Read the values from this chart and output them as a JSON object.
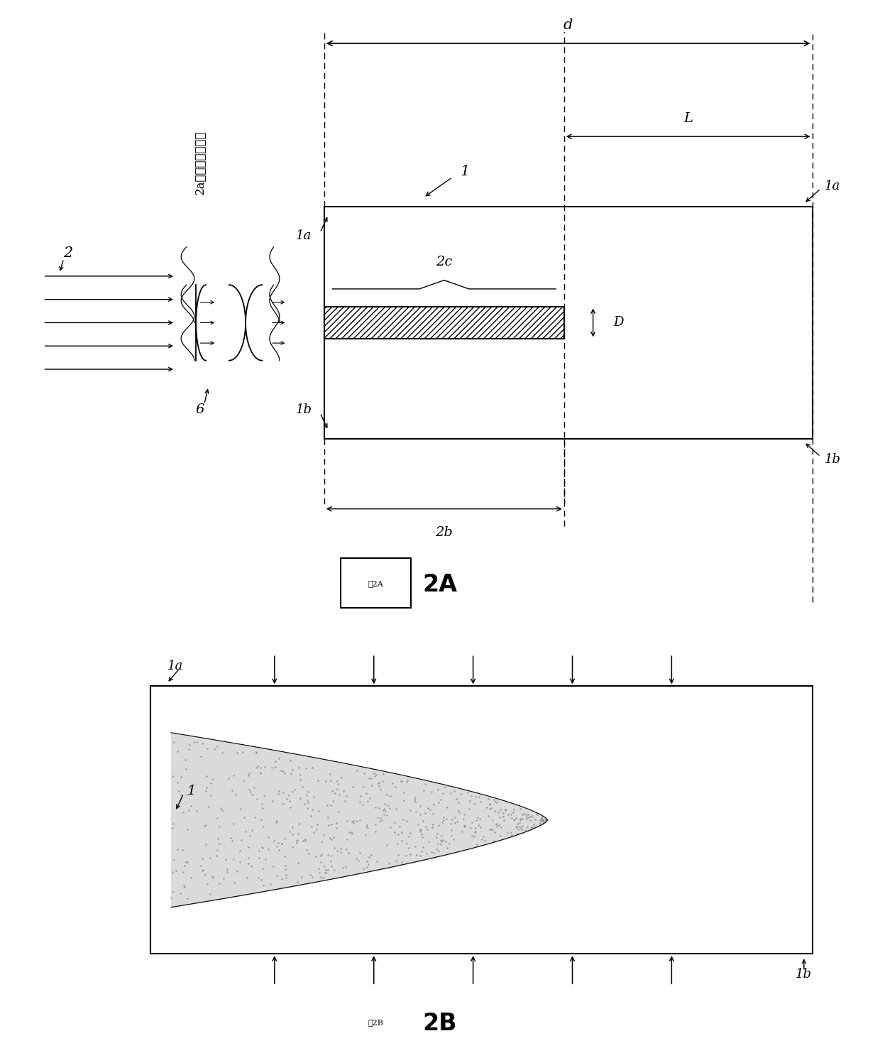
{
  "fig_width": 12.4,
  "fig_height": 14.9,
  "label_1": "1",
  "label_1a": "1a",
  "label_1b": "1b",
  "label_2": "2",
  "label_2a": "2a（来自激光器）",
  "label_2b": "2b",
  "label_2c": "2c",
  "label_6": "6",
  "label_L": "L",
  "label_d": "d",
  "label_D": "D",
  "label_2A": "2A",
  "label_2B": "2B",
  "fig2A": "图2A",
  "fig2B": "图2B"
}
